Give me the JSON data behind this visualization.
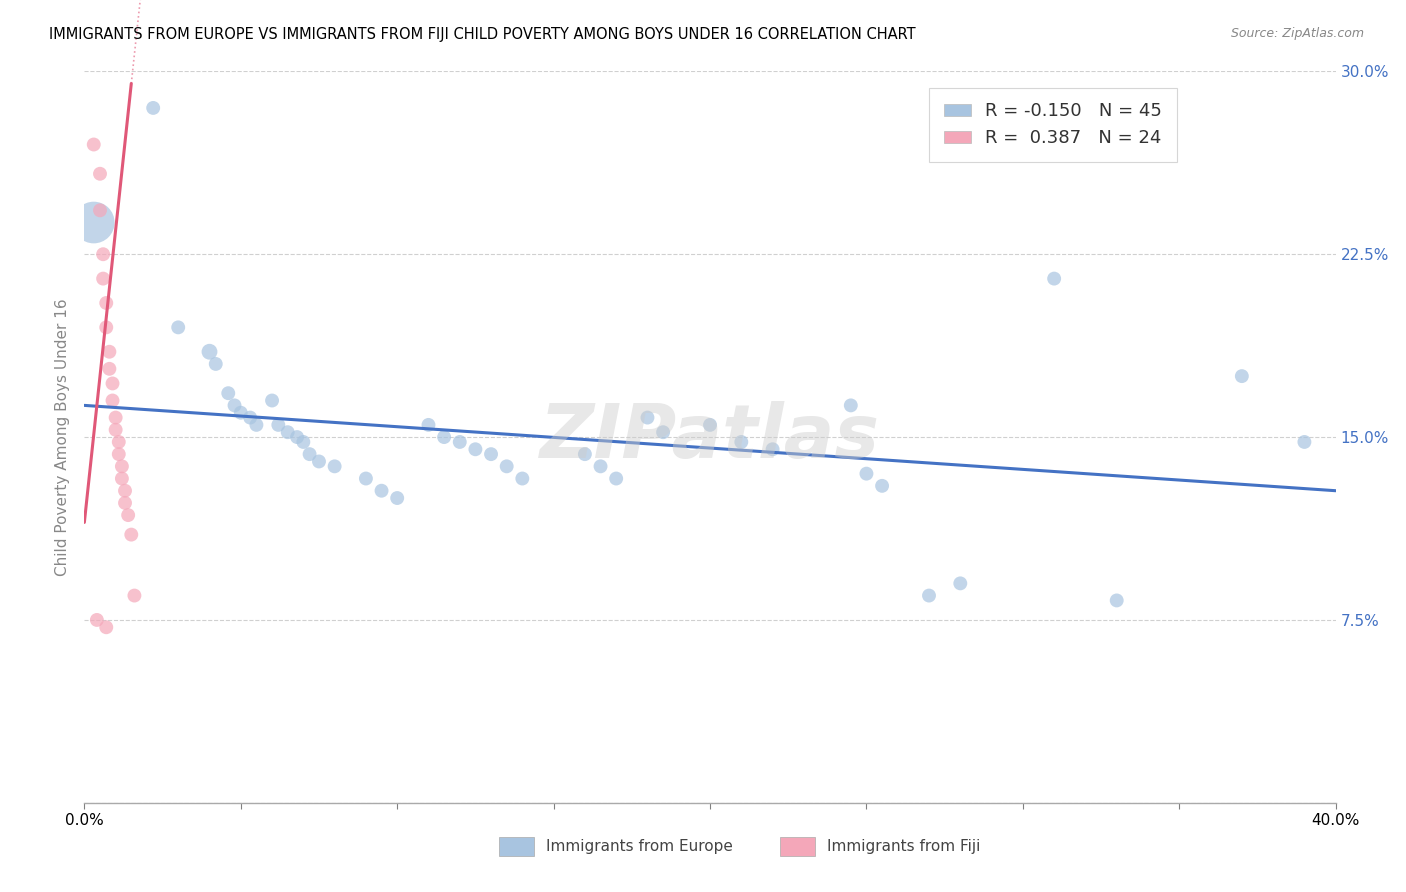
{
  "title": "IMMIGRANTS FROM EUROPE VS IMMIGRANTS FROM FIJI CHILD POVERTY AMONG BOYS UNDER 16 CORRELATION CHART",
  "source": "Source: ZipAtlas.com",
  "ylabel": "Child Poverty Among Boys Under 16",
  "xlim": [
    0.0,
    0.4
  ],
  "ylim": [
    0.0,
    0.3
  ],
  "xticks": [
    0.0,
    0.05,
    0.1,
    0.15,
    0.2,
    0.25,
    0.3,
    0.35,
    0.4
  ],
  "yticks": [
    0.0,
    0.075,
    0.15,
    0.225,
    0.3
  ],
  "ytick_labels": [
    "",
    "7.5%",
    "15.0%",
    "22.5%",
    "30.0%"
  ],
  "europe_color": "#a8c4e0",
  "europe_edge_color": "#7aafd4",
  "fiji_color": "#f4a7b9",
  "fiji_edge_color": "#e8789a",
  "europe_line_color": "#4472c4",
  "fiji_line_color": "#e05878",
  "legend_R_europe": "-0.150",
  "legend_N_europe": "45",
  "legend_R_fiji": "0.387",
  "legend_N_fiji": "24",
  "watermark": "ZIPatlas",
  "europe_trend": [
    0.0,
    0.4,
    0.163,
    0.128
  ],
  "fiji_trend_x": [
    0.0,
    0.015
  ],
  "fiji_trend_y": [
    0.115,
    0.295
  ],
  "europe_points": [
    [
      0.003,
      0.238,
      900
    ],
    [
      0.022,
      0.285,
      100
    ],
    [
      0.03,
      0.195,
      100
    ],
    [
      0.04,
      0.185,
      130
    ],
    [
      0.042,
      0.18,
      100
    ],
    [
      0.046,
      0.168,
      100
    ],
    [
      0.048,
      0.163,
      100
    ],
    [
      0.05,
      0.16,
      100
    ],
    [
      0.053,
      0.158,
      100
    ],
    [
      0.055,
      0.155,
      100
    ],
    [
      0.06,
      0.165,
      100
    ],
    [
      0.062,
      0.155,
      100
    ],
    [
      0.065,
      0.152,
      100
    ],
    [
      0.068,
      0.15,
      100
    ],
    [
      0.07,
      0.148,
      100
    ],
    [
      0.072,
      0.143,
      100
    ],
    [
      0.075,
      0.14,
      100
    ],
    [
      0.08,
      0.138,
      100
    ],
    [
      0.09,
      0.133,
      100
    ],
    [
      0.095,
      0.128,
      100
    ],
    [
      0.1,
      0.125,
      100
    ],
    [
      0.11,
      0.155,
      100
    ],
    [
      0.115,
      0.15,
      100
    ],
    [
      0.12,
      0.148,
      100
    ],
    [
      0.125,
      0.145,
      100
    ],
    [
      0.13,
      0.143,
      100
    ],
    [
      0.135,
      0.138,
      100
    ],
    [
      0.14,
      0.133,
      100
    ],
    [
      0.16,
      0.143,
      100
    ],
    [
      0.165,
      0.138,
      100
    ],
    [
      0.17,
      0.133,
      100
    ],
    [
      0.18,
      0.158,
      100
    ],
    [
      0.185,
      0.152,
      100
    ],
    [
      0.2,
      0.155,
      100
    ],
    [
      0.21,
      0.148,
      100
    ],
    [
      0.22,
      0.145,
      100
    ],
    [
      0.245,
      0.163,
      100
    ],
    [
      0.25,
      0.135,
      100
    ],
    [
      0.255,
      0.13,
      100
    ],
    [
      0.27,
      0.085,
      100
    ],
    [
      0.28,
      0.09,
      100
    ],
    [
      0.31,
      0.215,
      100
    ],
    [
      0.33,
      0.083,
      100
    ],
    [
      0.37,
      0.175,
      100
    ],
    [
      0.39,
      0.148,
      100
    ]
  ],
  "fiji_points": [
    [
      0.003,
      0.27,
      100
    ],
    [
      0.005,
      0.258,
      100
    ],
    [
      0.005,
      0.243,
      100
    ],
    [
      0.006,
      0.225,
      100
    ],
    [
      0.006,
      0.215,
      100
    ],
    [
      0.007,
      0.205,
      100
    ],
    [
      0.007,
      0.195,
      100
    ],
    [
      0.008,
      0.185,
      100
    ],
    [
      0.008,
      0.178,
      100
    ],
    [
      0.009,
      0.172,
      100
    ],
    [
      0.009,
      0.165,
      100
    ],
    [
      0.01,
      0.158,
      100
    ],
    [
      0.01,
      0.153,
      100
    ],
    [
      0.011,
      0.148,
      100
    ],
    [
      0.011,
      0.143,
      100
    ],
    [
      0.012,
      0.138,
      100
    ],
    [
      0.012,
      0.133,
      100
    ],
    [
      0.013,
      0.128,
      100
    ],
    [
      0.013,
      0.123,
      100
    ],
    [
      0.014,
      0.118,
      100
    ],
    [
      0.015,
      0.11,
      100
    ],
    [
      0.016,
      0.085,
      100
    ],
    [
      0.004,
      0.075,
      100
    ],
    [
      0.007,
      0.072,
      100
    ]
  ]
}
